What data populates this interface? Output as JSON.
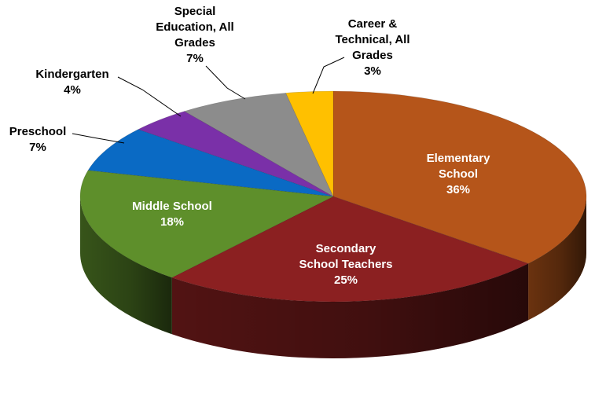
{
  "chart_data": {
    "type": "pie",
    "title": "",
    "style": "3d-tilted",
    "slices": [
      {
        "name": "Elementary School",
        "label_lines": [
          "Elementary",
          "School"
        ],
        "percent_label": "36%",
        "value": 36,
        "color": "#b5551a",
        "label_inside": true
      },
      {
        "name": "Secondary School Teachers",
        "label_lines": [
          "Secondary",
          "School Teachers"
        ],
        "percent_label": "25%",
        "value": 25,
        "color": "#8b2021",
        "label_inside": true
      },
      {
        "name": "Middle School",
        "label_lines": [
          "Middle School"
        ],
        "percent_label": "18%",
        "value": 18,
        "color": "#5e8f2b",
        "label_inside": true
      },
      {
        "name": "Preschool",
        "label_lines": [
          "Preschool"
        ],
        "percent_label": "7%",
        "value": 7,
        "color": "#0a6ac4",
        "label_inside": false
      },
      {
        "name": "Kindergarten",
        "label_lines": [
          "Kindergarten"
        ],
        "percent_label": "4%",
        "value": 4,
        "color": "#7a30a8",
        "label_inside": false
      },
      {
        "name": "Special Education, All Grades",
        "label_lines": [
          "Special",
          "Education, All",
          "Grades"
        ],
        "percent_label": "7%",
        "value": 7,
        "color": "#8c8c8c",
        "label_inside": false
      },
      {
        "name": "Career & Technical, All Grades",
        "label_lines": [
          "Career &",
          "Technical, All",
          "Grades"
        ],
        "percent_label": "3%",
        "value": 3,
        "color": "#ffc000",
        "label_inside": false
      }
    ]
  }
}
